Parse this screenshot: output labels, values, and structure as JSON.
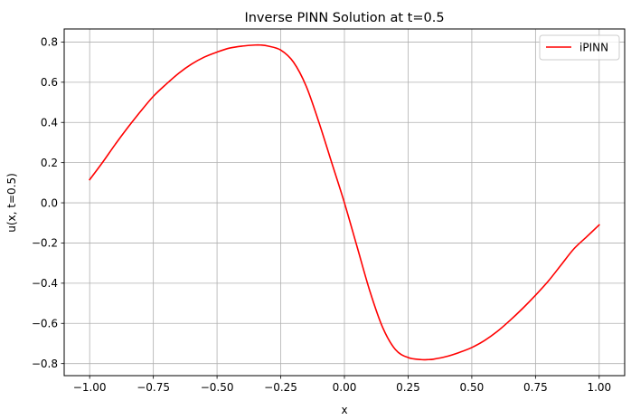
{
  "chart_data": {
    "type": "line",
    "title": "Inverse PINN Solution at t=0.5",
    "xlabel": "x",
    "ylabel": "u(x, t=0.5)",
    "xlim": [
      -1.1,
      1.1
    ],
    "ylim": [
      -0.86,
      0.865
    ],
    "x_ticks": [
      -1.0,
      -0.75,
      -0.5,
      -0.25,
      0.0,
      0.25,
      0.5,
      0.75,
      1.0
    ],
    "x_tick_labels": [
      "−1.00",
      "−0.75",
      "−0.50",
      "−0.25",
      "0.00",
      "0.25",
      "0.50",
      "0.75",
      "1.00"
    ],
    "y_ticks": [
      -0.8,
      -0.6,
      -0.4,
      -0.2,
      0.0,
      0.2,
      0.4,
      0.6,
      0.8
    ],
    "y_tick_labels": [
      "−0.8",
      "−0.6",
      "−0.4",
      "−0.2",
      "0.0",
      "0.2",
      "0.4",
      "0.6",
      "0.8"
    ],
    "grid": true,
    "legend_position": "top-right",
    "series": [
      {
        "name": "iPINN",
        "color": "#ff0000",
        "x": [
          -1.0,
          -0.95,
          -0.9,
          -0.85,
          -0.8,
          -0.75,
          -0.7,
          -0.65,
          -0.6,
          -0.55,
          -0.5,
          -0.45,
          -0.4,
          -0.35,
          -0.33,
          -0.3,
          -0.25,
          -0.2,
          -0.15,
          -0.1,
          -0.05,
          0.0,
          0.05,
          0.1,
          0.15,
          0.2,
          0.25,
          0.3,
          0.33,
          0.35,
          0.4,
          0.45,
          0.5,
          0.55,
          0.6,
          0.65,
          0.7,
          0.75,
          0.8,
          0.85,
          0.9,
          0.95,
          1.0
        ],
        "y": [
          0.115,
          0.2,
          0.29,
          0.375,
          0.455,
          0.53,
          0.59,
          0.645,
          0.69,
          0.725,
          0.75,
          0.77,
          0.78,
          0.785,
          0.785,
          0.78,
          0.76,
          0.7,
          0.58,
          0.4,
          0.2,
          0.0,
          -0.22,
          -0.44,
          -0.62,
          -0.73,
          -0.77,
          -0.78,
          -0.78,
          -0.778,
          -0.765,
          -0.745,
          -0.72,
          -0.685,
          -0.64,
          -0.585,
          -0.525,
          -0.46,
          -0.39,
          -0.31,
          -0.23,
          -0.17,
          -0.11
        ]
      }
    ]
  }
}
